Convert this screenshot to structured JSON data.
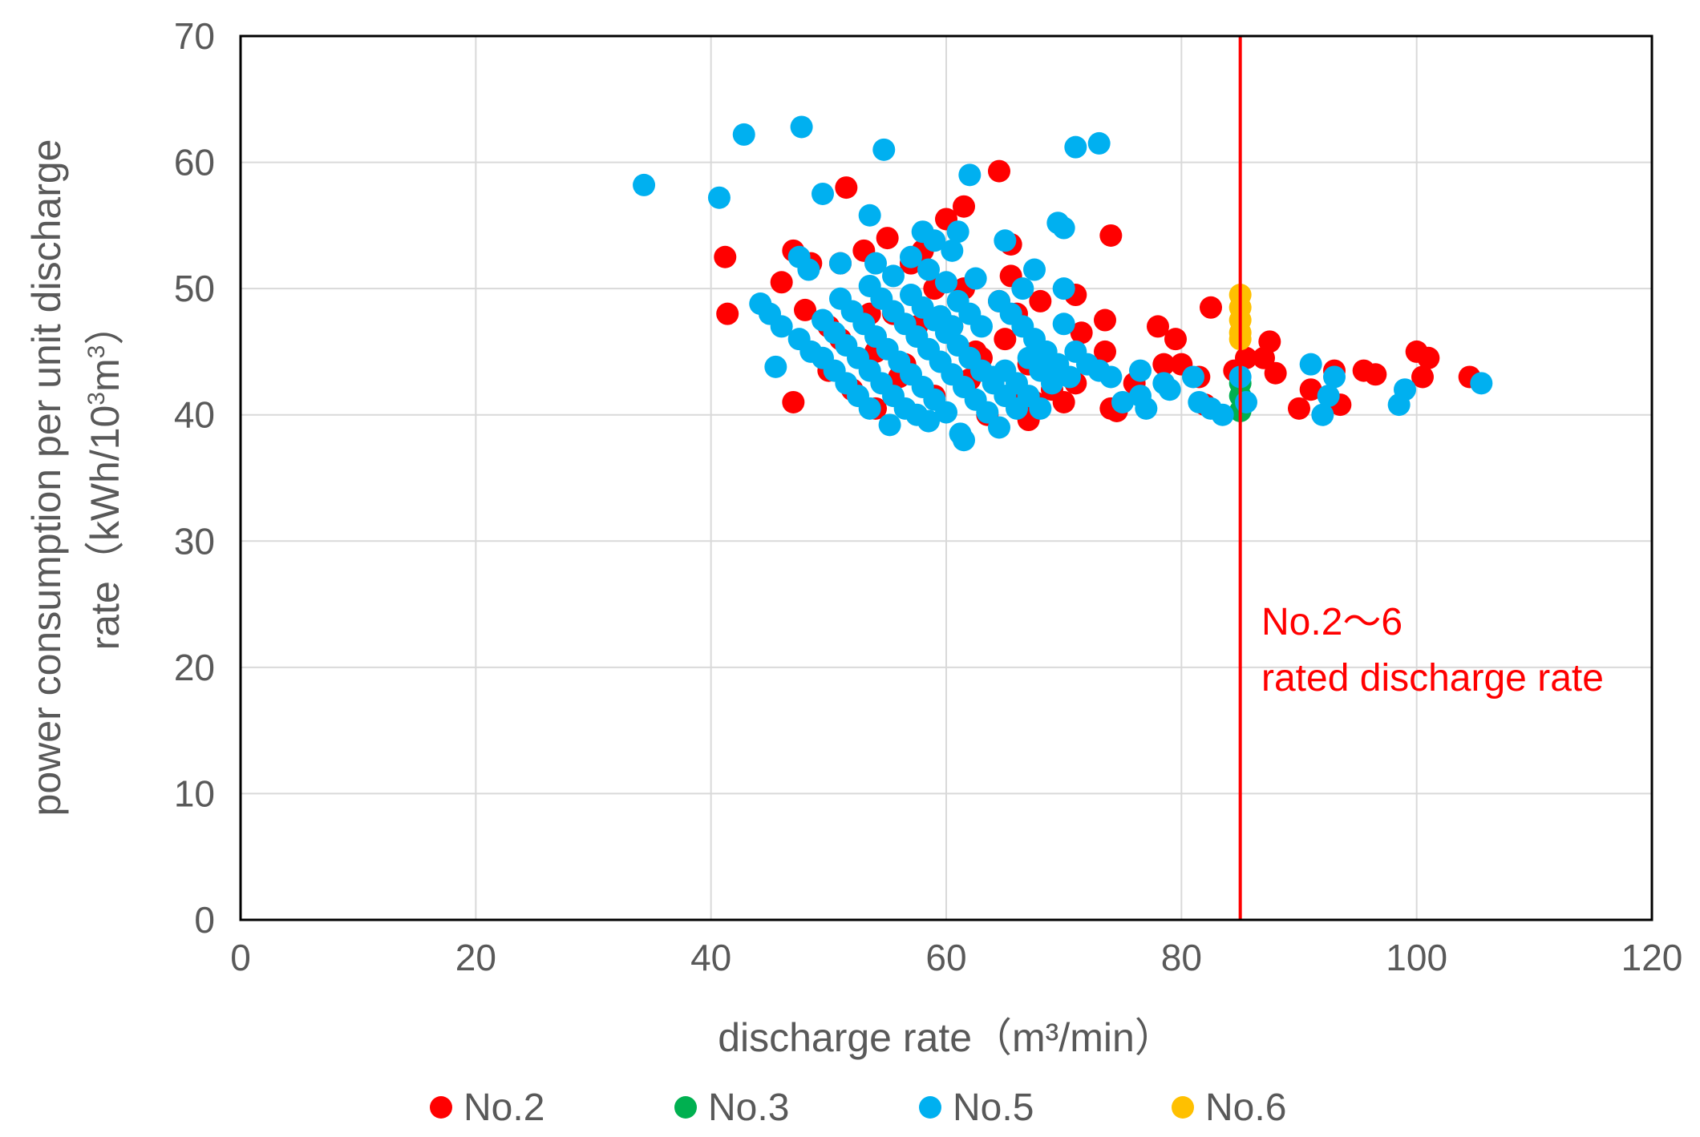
{
  "chart_data": {
    "type": "scatter",
    "title": "",
    "xlabel": "discharge rate（m³/min）",
    "ylabel_line1": "power consumption per unit discharge",
    "ylabel_line2_pre": "rate（kWh/10",
    "ylabel_sup1": "3",
    "ylabel_mid": "m",
    "ylabel_sup2": "3",
    "ylabel_post": "）",
    "xlim": [
      0,
      120
    ],
    "ylim": [
      0,
      70
    ],
    "x_ticks": [
      0,
      20,
      40,
      60,
      80,
      100,
      120
    ],
    "y_ticks": [
      0,
      10,
      20,
      30,
      40,
      50,
      60,
      70
    ],
    "grid": true,
    "legend_position": "bottom",
    "reference_line": {
      "x": 85,
      "color": "#ff0000",
      "label_line1": "No.2～6",
      "label_line2": "rated discharge rate"
    },
    "series": [
      {
        "name": "No.2",
        "color": "#ff0000",
        "points": [
          [
            41.2,
            52.5
          ],
          [
            41.4,
            48
          ],
          [
            46,
            50.5
          ],
          [
            47,
            53
          ],
          [
            48,
            48.3
          ],
          [
            48.5,
            52
          ],
          [
            50,
            47
          ],
          [
            51,
            46
          ],
          [
            51.5,
            58
          ],
          [
            51,
            52
          ],
          [
            53,
            53
          ],
          [
            53.5,
            48
          ],
          [
            54,
            45
          ],
          [
            55,
            54
          ],
          [
            55.5,
            48
          ],
          [
            56.5,
            44
          ],
          [
            57,
            52
          ],
          [
            57.5,
            47
          ],
          [
            58,
            53
          ],
          [
            59,
            50
          ],
          [
            60,
            55.5
          ],
          [
            60.5,
            47
          ],
          [
            61.5,
            56.5
          ],
          [
            61.5,
            50
          ],
          [
            62.5,
            45
          ],
          [
            63,
            44.5
          ],
          [
            64.5,
            59.3
          ],
          [
            64.5,
            49
          ],
          [
            65,
            46
          ],
          [
            65.5,
            53.5
          ],
          [
            65.5,
            51
          ],
          [
            66,
            48
          ],
          [
            67,
            44
          ],
          [
            67.5,
            41
          ],
          [
            68,
            49
          ],
          [
            68.5,
            43.5
          ],
          [
            69,
            42
          ],
          [
            70,
            41
          ],
          [
            71,
            49.5
          ],
          [
            71.5,
            46.5
          ],
          [
            71,
            42.5
          ],
          [
            73.5,
            47.5
          ],
          [
            73.5,
            45
          ],
          [
            74,
            54.2
          ],
          [
            74,
            40.5
          ],
          [
            74.5,
            40.3
          ],
          [
            76,
            42.5
          ],
          [
            78,
            47
          ],
          [
            78.5,
            44
          ],
          [
            79.5,
            46
          ],
          [
            80,
            44
          ],
          [
            81.5,
            43
          ],
          [
            82,
            40.8
          ],
          [
            82.5,
            48.5
          ],
          [
            84.5,
            43.5
          ],
          [
            85.5,
            44.5
          ],
          [
            87,
            44.5
          ],
          [
            87.5,
            45.8
          ],
          [
            88,
            43.3
          ],
          [
            90,
            40.5
          ],
          [
            91,
            42
          ],
          [
            93,
            43.5
          ],
          [
            93.5,
            40.8
          ],
          [
            95.5,
            43.5
          ],
          [
            96.5,
            43.2
          ],
          [
            100,
            45
          ],
          [
            100.5,
            43
          ],
          [
            101,
            44.5
          ],
          [
            104.5,
            43
          ],
          [
            47,
            41
          ],
          [
            50,
            43.5
          ],
          [
            52,
            42
          ],
          [
            54,
            40.5
          ],
          [
            56,
            43
          ],
          [
            59,
            41.5
          ],
          [
            62,
            42.8
          ],
          [
            63.5,
            40
          ],
          [
            66,
            41
          ],
          [
            67,
            39.6
          ]
        ]
      },
      {
        "name": "No.3",
        "color": "#00b050",
        "points": [
          [
            85,
            40.3
          ],
          [
            85,
            41.5
          ],
          [
            85,
            42.5
          ]
        ]
      },
      {
        "name": "No.5",
        "color": "#00b0f0",
        "points": [
          [
            34.3,
            58.2
          ],
          [
            40.7,
            57.2
          ],
          [
            42.8,
            62.2
          ],
          [
            47.7,
            62.8
          ],
          [
            49.5,
            57.5
          ],
          [
            53.5,
            55.8
          ],
          [
            54.7,
            61
          ],
          [
            62,
            59
          ],
          [
            71,
            61.2
          ],
          [
            73,
            61.5
          ],
          [
            69.5,
            55.2
          ],
          [
            70,
            54.8
          ],
          [
            65,
            53.8
          ],
          [
            61,
            54.5
          ],
          [
            58,
            54.5
          ],
          [
            59,
            53.8
          ],
          [
            60.5,
            53
          ],
          [
            57,
            52.5
          ],
          [
            47.5,
            52.5
          ],
          [
            48.3,
            51.5
          ],
          [
            51,
            52
          ],
          [
            54,
            52
          ],
          [
            55.5,
            51
          ],
          [
            58.5,
            51.5
          ],
          [
            60,
            50.5
          ],
          [
            62.5,
            50.8
          ],
          [
            64.5,
            49
          ],
          [
            66.5,
            50
          ],
          [
            67.5,
            51.5
          ],
          [
            70,
            50
          ],
          [
            44.2,
            48.8
          ],
          [
            45,
            48
          ],
          [
            46,
            47
          ],
          [
            47.5,
            46
          ],
          [
            48.5,
            45
          ],
          [
            49.5,
            44.5
          ],
          [
            50.5,
            43.5
          ],
          [
            51.5,
            42.5
          ],
          [
            52.5,
            41.5
          ],
          [
            53.5,
            40.5
          ],
          [
            45.5,
            43.8
          ],
          [
            55.2,
            39.2
          ],
          [
            49.5,
            47.5
          ],
          [
            50.5,
            46.5
          ],
          [
            51.5,
            45.5
          ],
          [
            52.5,
            44.5
          ],
          [
            53.5,
            43.5
          ],
          [
            54.5,
            42.5
          ],
          [
            55.5,
            41.5
          ],
          [
            56.5,
            40.5
          ],
          [
            57.5,
            40
          ],
          [
            58.5,
            39.5
          ],
          [
            51,
            49.2
          ],
          [
            52,
            48.2
          ],
          [
            53,
            47.2
          ],
          [
            54,
            46.2
          ],
          [
            55,
            45.2
          ],
          [
            56,
            44.2
          ],
          [
            57,
            43.2
          ],
          [
            58,
            42.2
          ],
          [
            59,
            41.2
          ],
          [
            60,
            40.2
          ],
          [
            53.5,
            50.2
          ],
          [
            54.5,
            49.2
          ],
          [
            55.5,
            48.2
          ],
          [
            56.5,
            47.2
          ],
          [
            57.5,
            46.2
          ],
          [
            58.5,
            45.2
          ],
          [
            59.5,
            44.2
          ],
          [
            60.5,
            43.2
          ],
          [
            61.5,
            42.2
          ],
          [
            62.5,
            41.2
          ],
          [
            63.5,
            40.2
          ],
          [
            57,
            49.5
          ],
          [
            58,
            48.5
          ],
          [
            59,
            47.5
          ],
          [
            60,
            46.5
          ],
          [
            61,
            45.5
          ],
          [
            62,
            44.5
          ],
          [
            63,
            43.5
          ],
          [
            64,
            42.5
          ],
          [
            65,
            41.5
          ],
          [
            66,
            40.5
          ],
          [
            61,
            49
          ],
          [
            62,
            48
          ],
          [
            63,
            47
          ],
          [
            59.5,
            47.8
          ],
          [
            60.5,
            47
          ],
          [
            61.5,
            38
          ],
          [
            61.2,
            38.5
          ],
          [
            64.5,
            39
          ],
          [
            64,
            43
          ],
          [
            65,
            43.5
          ],
          [
            66,
            42.5
          ],
          [
            67,
            41.5
          ],
          [
            68,
            40.5
          ],
          [
            65.5,
            48
          ],
          [
            66.5,
            47
          ],
          [
            67.5,
            46
          ],
          [
            68.5,
            45
          ],
          [
            69.5,
            44
          ],
          [
            70.5,
            43
          ],
          [
            67,
            44.5
          ],
          [
            68,
            43.5
          ],
          [
            69,
            42.5
          ],
          [
            70,
            47.2
          ],
          [
            71,
            45
          ],
          [
            72,
            44
          ],
          [
            73,
            43.5
          ],
          [
            74,
            43
          ],
          [
            76.5,
            43.5
          ],
          [
            76.5,
            41.5
          ],
          [
            78.5,
            42.5
          ],
          [
            79,
            42
          ],
          [
            81,
            43
          ],
          [
            81.5,
            41
          ],
          [
            82.5,
            40.5
          ],
          [
            83.5,
            40
          ],
          [
            85,
            43
          ],
          [
            85.5,
            41
          ],
          [
            91,
            44
          ],
          [
            92,
            40
          ],
          [
            92.5,
            41.5
          ],
          [
            93,
            43
          ],
          [
            98.5,
            40.8
          ],
          [
            99,
            42
          ],
          [
            105.5,
            42.5
          ],
          [
            75,
            41
          ],
          [
            77,
            40.5
          ]
        ]
      },
      {
        "name": "No.6",
        "color": "#ffc000",
        "points": [
          [
            85,
            49.5
          ],
          [
            85,
            48.5
          ],
          [
            85,
            47.5
          ],
          [
            85,
            46.5
          ],
          [
            85,
            46
          ]
        ]
      }
    ]
  }
}
